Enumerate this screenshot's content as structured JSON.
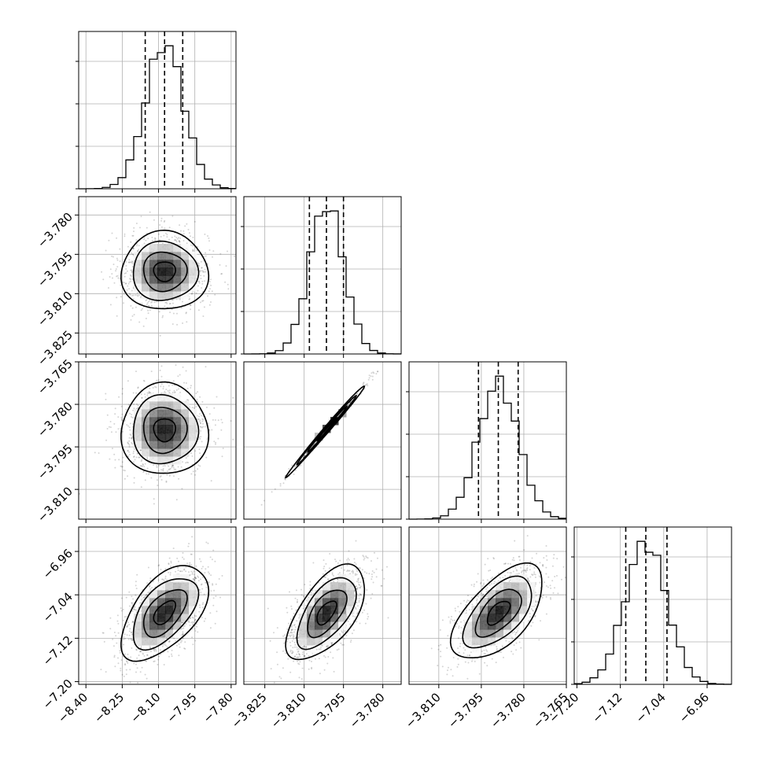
{
  "chart_data": {
    "type": "corner",
    "title": "",
    "parameters": [
      {
        "name": "",
        "range": [
          -8.43,
          -7.78
        ],
        "ticks": [
          -8.4,
          -8.25,
          -8.1,
          -7.95,
          -7.8
        ],
        "tick_labels": [
          "−8.40",
          "−8.25",
          "−8.10",
          "−7.95",
          "−7.80"
        ],
        "median": -8.075,
        "q16": -8.155,
        "q84": -8.0,
        "std": 0.078
      },
      {
        "name": "",
        "range": [
          -3.833,
          -3.773
        ],
        "ticks": [
          -3.825,
          -3.81,
          -3.795,
          -3.78
        ],
        "tick_labels": [
          "−3.825",
          "−3.810",
          "−3.795",
          "−3.780"
        ],
        "median": -3.8015,
        "q16": -3.808,
        "q84": -3.795,
        "std": 0.0065
      },
      {
        "name": "",
        "range": [
          -3.8205,
          -3.765
        ],
        "ticks": [
          -3.81,
          -3.795,
          -3.78,
          -3.765
        ],
        "tick_labels": [
          "−3.810",
          "−3.795",
          "−3.780",
          "−3.765"
        ],
        "median": -3.789,
        "q16": -3.796,
        "q84": -3.782,
        "std": 0.007
      },
      {
        "name": "",
        "range": [
          -7.205,
          -6.915
        ],
        "ticks": [
          -7.2,
          -7.12,
          -7.04,
          -6.96
        ],
        "tick_labels": [
          "−7.20",
          "−7.12",
          "−7.04",
          "−6.96"
        ],
        "median": -7.073,
        "q16": -7.11,
        "q84": -7.034,
        "std": 0.038
      }
    ],
    "correlation": [
      [
        1.0,
        0.0,
        0.0,
        0.55
      ],
      [
        0.0,
        1.0,
        0.995,
        0.6
      ],
      [
        0.0,
        0.995,
        1.0,
        0.6
      ],
      [
        0.55,
        0.6,
        0.6,
        1.0
      ]
    ],
    "histogram_bins": 20,
    "show_quantiles": true,
    "quantiles": [
      0.16,
      0.5,
      0.84
    ],
    "grid": true,
    "legend": "none"
  }
}
